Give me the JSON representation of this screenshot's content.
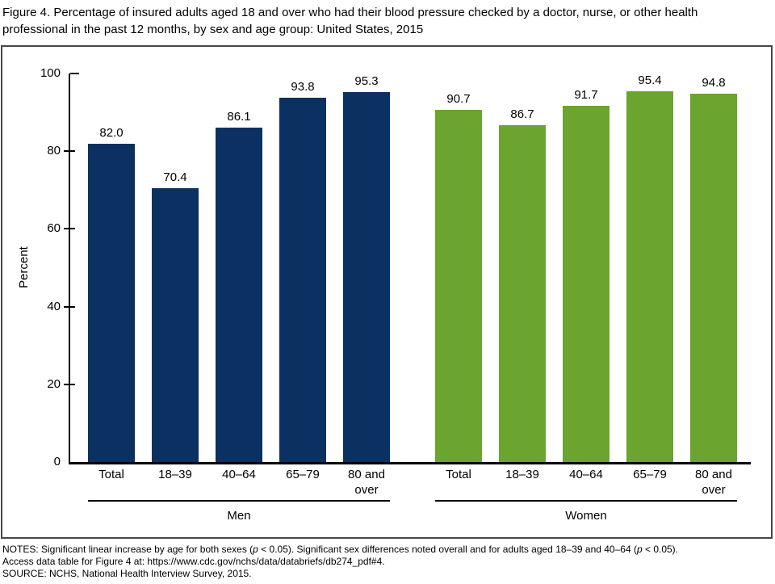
{
  "title": "Figure 4. Percentage of insured adults aged 18 and over who had their blood pressure checked by a doctor, nurse, or other health professional in the past 12 months, by sex and age group: United States, 2015",
  "chart_data": {
    "type": "bar",
    "categories": [
      "Total",
      "18–39",
      "40–64",
      "65–79",
      "80 and over"
    ],
    "series": [
      {
        "name": "Men",
        "color": "#0a3161",
        "values": [
          82.0,
          70.4,
          86.1,
          93.8,
          95.3
        ]
      },
      {
        "name": "Women",
        "color": "#6ba42e",
        "values": [
          90.7,
          86.7,
          91.7,
          95.4,
          94.8
        ]
      }
    ],
    "ylabel": "Percent",
    "ylim": [
      0,
      100
    ],
    "yticks": [
      0,
      20,
      40,
      60,
      80,
      100
    ],
    "grid": false,
    "legend_position": "none",
    "value_labels": true,
    "axis_color": "#000000"
  },
  "notes": {
    "line1_segments": [
      "NOTES: Significant linear increase by age for both sexes (",
      "p",
      " < 0.05). Significant sex differences noted overall and for adults aged 18–39 and 40–64 (",
      "p",
      " < 0.05)."
    ],
    "line2": "Access data table for Figure 4 at: https://www.cdc.gov/nchs/data/databriefs/db274_pdf#4.",
    "line3": "SOURCE: NCHS, National Health Interview Survey, 2015."
  }
}
